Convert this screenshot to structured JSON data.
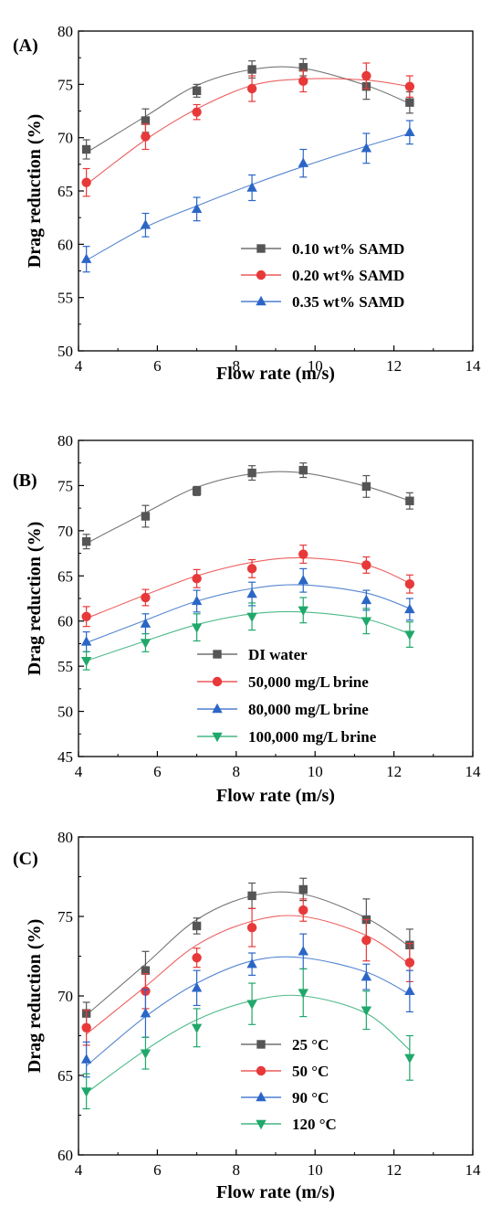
{
  "chart_data": [
    {
      "type": "scatter",
      "panel_label": "(A)",
      "xlabel": "Flow rate (m/s)",
      "ylabel": "Drag reduction (%)",
      "xlim": [
        4,
        14
      ],
      "ylim": [
        50,
        80
      ],
      "x_ticks": [
        "4",
        "6",
        "8",
        "10",
        "12",
        "14"
      ],
      "y_ticks": [
        "50",
        "55",
        "60",
        "65",
        "70",
        "75",
        "80"
      ],
      "legend_position": "center-right",
      "error_bars": true,
      "fit_curves": true,
      "x": [
        4.2,
        5.7,
        7.0,
        8.4,
        9.7,
        11.3,
        12.4
      ],
      "series": [
        {
          "name": "0.10 wt% SAMD",
          "color": "#555555",
          "marker": "square",
          "values": [
            68.9,
            71.6,
            74.4,
            76.4,
            76.6,
            74.8,
            73.3
          ],
          "errors": [
            0.9,
            1.1,
            0.6,
            0.8,
            0.8,
            1.2,
            1.0
          ],
          "fit": [
            68.6,
            72.0,
            74.9,
            76.4,
            76.5,
            74.9,
            73.2
          ]
        },
        {
          "name": "0.20 wt% SAMD",
          "color": "#e8393a",
          "marker": "circle",
          "values": [
            65.8,
            70.1,
            72.4,
            74.6,
            75.3,
            75.8,
            74.8
          ],
          "errors": [
            1.3,
            1.2,
            0.7,
            1.2,
            1.0,
            1.2,
            1.0
          ],
          "fit": [
            65.6,
            69.8,
            72.7,
            74.9,
            75.5,
            75.4,
            74.8
          ]
        },
        {
          "name": "0.35 wt% SAMD",
          "color": "#2b66c6",
          "marker": "triangle-up",
          "values": [
            58.6,
            61.8,
            63.3,
            65.3,
            67.6,
            69.0,
            70.5
          ],
          "errors": [
            1.2,
            1.1,
            1.1,
            1.2,
            1.3,
            1.4,
            1.1
          ],
          "fit": [
            58.5,
            61.6,
            63.6,
            65.6,
            67.3,
            69.2,
            70.4
          ]
        }
      ]
    },
    {
      "type": "scatter",
      "panel_label": "(B)",
      "xlabel": "Flow rate (m/s)",
      "ylabel": "Drag reduction (%)",
      "xlim": [
        4,
        14
      ],
      "ylim": [
        45,
        80
      ],
      "x_ticks": [
        "4",
        "6",
        "8",
        "10",
        "12",
        "14"
      ],
      "y_ticks": [
        "45",
        "50",
        "55",
        "60",
        "65",
        "70",
        "75",
        "80"
      ],
      "legend_position": "bottom-center",
      "error_bars": true,
      "fit_curves": true,
      "x": [
        4.2,
        5.7,
        7.0,
        8.4,
        9.7,
        11.3,
        12.4
      ],
      "series": [
        {
          "name": "DI water",
          "color": "#555555",
          "marker": "square",
          "values": [
            68.8,
            71.6,
            74.4,
            76.4,
            76.7,
            74.9,
            73.3
          ],
          "errors": [
            0.8,
            1.2,
            0.5,
            0.8,
            0.8,
            1.2,
            0.9
          ],
          "fit": [
            68.6,
            72.0,
            74.8,
            76.3,
            76.4,
            74.9,
            73.3
          ]
        },
        {
          "name": "50,000 mg/L brine",
          "color": "#e8393a",
          "marker": "circle",
          "values": [
            60.5,
            62.6,
            64.7,
            65.8,
            67.4,
            66.2,
            64.1
          ],
          "errors": [
            1.1,
            0.9,
            1.0,
            1.0,
            1.0,
            0.9,
            1.0
          ],
          "fit": [
            60.3,
            62.9,
            65.0,
            66.5,
            67.0,
            66.2,
            64.2
          ]
        },
        {
          "name": "80,000 mg/L brine",
          "color": "#2b66c6",
          "marker": "triangle-up",
          "values": [
            57.7,
            59.7,
            62.2,
            63.0,
            64.5,
            62.3,
            61.3
          ],
          "errors": [
            1.1,
            1.1,
            1.2,
            1.3,
            1.3,
            1.1,
            1.2
          ],
          "fit": [
            57.6,
            60.1,
            62.2,
            63.6,
            64.0,
            63.1,
            61.4
          ]
        },
        {
          "name": "100,000 mg/L brine",
          "color": "#20a86b",
          "marker": "triangle-down",
          "values": [
            55.6,
            57.6,
            59.3,
            60.5,
            61.2,
            60.0,
            58.5
          ],
          "errors": [
            1.0,
            1.0,
            1.5,
            1.5,
            1.4,
            1.4,
            1.4
          ],
          "fit": [
            55.6,
            57.8,
            59.6,
            60.8,
            61.0,
            60.2,
            58.6
          ]
        }
      ]
    },
    {
      "type": "scatter",
      "panel_label": "(C)",
      "xlabel": "Flow rate (m/s)",
      "ylabel": "Drag reduction (%)",
      "xlim": [
        4,
        14
      ],
      "ylim": [
        60,
        80
      ],
      "x_ticks": [
        "4",
        "6",
        "8",
        "10",
        "12",
        "14"
      ],
      "y_ticks": [
        "60",
        "65",
        "70",
        "75",
        "80"
      ],
      "legend_position": "bottom-center",
      "error_bars": true,
      "fit_curves": true,
      "x": [
        4.2,
        5.7,
        7.0,
        8.4,
        9.7,
        11.3,
        12.4
      ],
      "series": [
        {
          "name": "25 °C",
          "color": "#555555",
          "marker": "square",
          "values": [
            68.9,
            71.6,
            74.4,
            76.3,
            76.7,
            74.8,
            73.2
          ],
          "errors": [
            0.7,
            1.2,
            0.5,
            0.8,
            0.7,
            1.3,
            1.0
          ],
          "fit": [
            68.8,
            72.0,
            74.8,
            76.3,
            76.4,
            74.9,
            73.1
          ]
        },
        {
          "name": "50 °C",
          "color": "#e8393a",
          "marker": "circle",
          "values": [
            68.0,
            70.3,
            72.4,
            74.3,
            75.4,
            73.5,
            72.1
          ],
          "errors": [
            1.1,
            1.1,
            0.6,
            1.2,
            0.7,
            1.3,
            1.2
          ],
          "fit": [
            67.6,
            70.6,
            73.2,
            74.7,
            75.0,
            73.8,
            72.0
          ]
        },
        {
          "name": "90 °C",
          "color": "#2b66c6",
          "marker": "triangle-up",
          "values": [
            66.0,
            68.9,
            70.5,
            72.0,
            72.8,
            71.2,
            70.3
          ],
          "errors": [
            1.1,
            1.5,
            1.1,
            0.7,
            1.1,
            0.8,
            1.3
          ],
          "fit": [
            65.6,
            68.7,
            70.8,
            72.2,
            72.4,
            71.5,
            70.1
          ]
        },
        {
          "name": "120 °C",
          "color": "#20a86b",
          "marker": "triangle-down",
          "values": [
            64.0,
            66.4,
            68.0,
            69.5,
            70.2,
            69.1,
            66.1
          ],
          "errors": [
            1.1,
            1.0,
            1.2,
            1.3,
            1.5,
            1.2,
            1.4
          ],
          "fit": [
            63.9,
            66.6,
            68.5,
            69.7,
            70.0,
            68.9,
            66.6
          ]
        }
      ]
    }
  ]
}
